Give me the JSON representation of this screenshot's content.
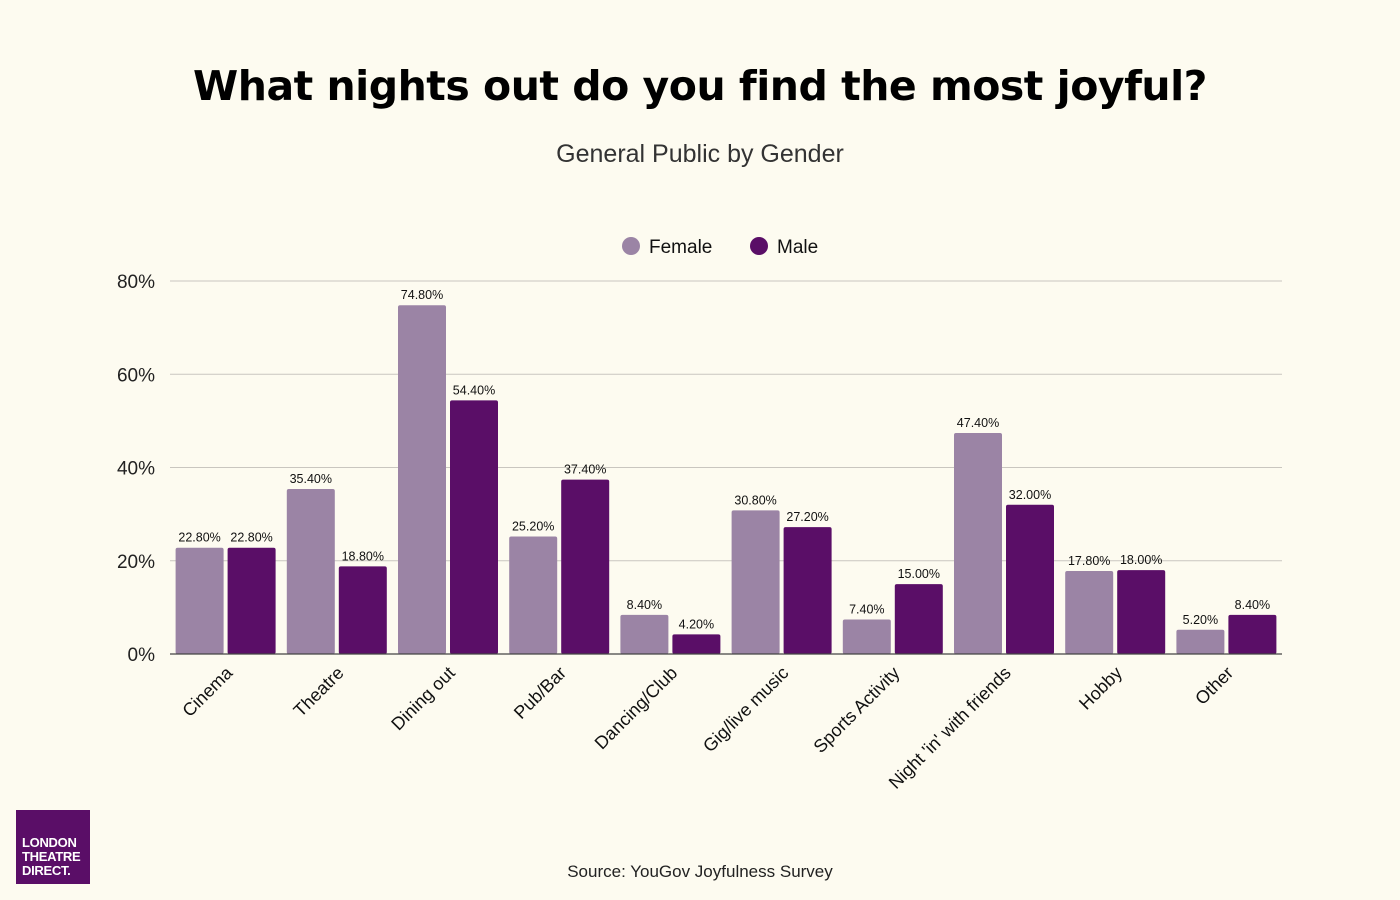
{
  "header": {
    "title": "What nights out do you find the most joyful?",
    "subtitle": "General Public by Gender"
  },
  "logo": {
    "line1": "LONDON",
    "line2": "THEATRE",
    "line3": "DIRECT."
  },
  "footer": {
    "source": "Source: YouGov Joyfulness Survey"
  },
  "colors": {
    "female": "#9b84a5",
    "male": "#5a0e67",
    "grid": "#c9c6bf",
    "background": "#fdfbf0"
  },
  "chart_data": {
    "type": "bar",
    "title": "What nights out do you find the most joyful?",
    "subtitle": "General Public by Gender",
    "categories": [
      "Cinema",
      "Theatre",
      "Dining out",
      "Pub/Bar",
      "Dancing/Club",
      "Gig/live music",
      "Sports Activity",
      "Night 'in' with friends",
      "Hobby",
      "Other"
    ],
    "series": [
      {
        "name": "Female",
        "values": [
          22.8,
          35.4,
          74.8,
          25.2,
          8.4,
          30.8,
          7.4,
          47.4,
          17.8,
          5.2
        ],
        "labels": [
          "22.80%",
          "35.40%",
          "74.80%",
          "25.20%",
          "8.40%",
          "30.80%",
          "7.40%",
          "47.40%",
          "17.80%",
          "5.20%"
        ]
      },
      {
        "name": "Male",
        "values": [
          22.8,
          18.8,
          54.4,
          37.4,
          4.2,
          27.2,
          15.0,
          32.0,
          18.0,
          8.4
        ],
        "labels": [
          "22.80%",
          "18.80%",
          "54.40%",
          "37.40%",
          "4.20%",
          "27.20%",
          "15.00%",
          "32.00%",
          "18.00%",
          "8.40%"
        ]
      }
    ],
    "ylim": [
      0,
      80
    ],
    "yticks": [
      0,
      20,
      40,
      60,
      80
    ],
    "ytick_labels": [
      "0%",
      "20%",
      "40%",
      "60%",
      "80%"
    ],
    "xlabel": "",
    "ylabel": "",
    "grid": true,
    "legend": "top-center"
  }
}
